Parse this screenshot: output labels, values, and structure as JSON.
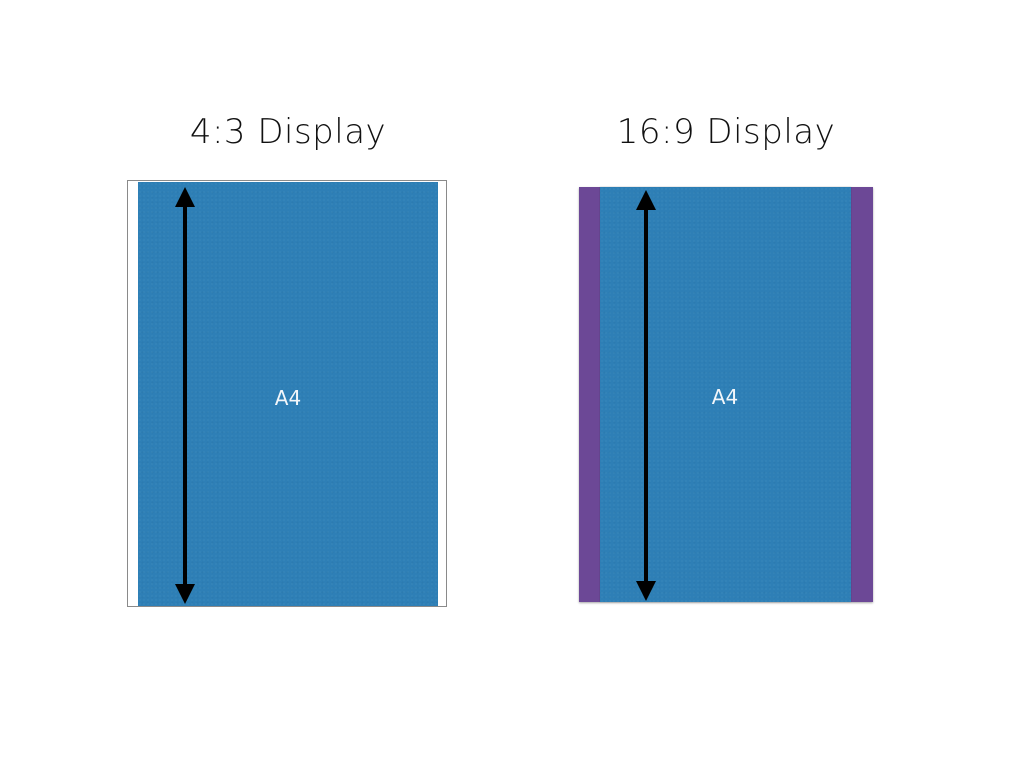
{
  "displays": {
    "left": {
      "title": "4:3 Display",
      "page_label": "A4"
    },
    "right": {
      "title": "16:9 Display",
      "page_label": "A4"
    }
  },
  "colors": {
    "page_fill": "#2e7fb6",
    "letterbox_fill": "#6c4896",
    "frame_border": "#8a8a8a",
    "arrow": "#000000",
    "label_text": "#f2f6fa"
  },
  "icons": {
    "arrow": "double-headed-vertical-arrow"
  }
}
